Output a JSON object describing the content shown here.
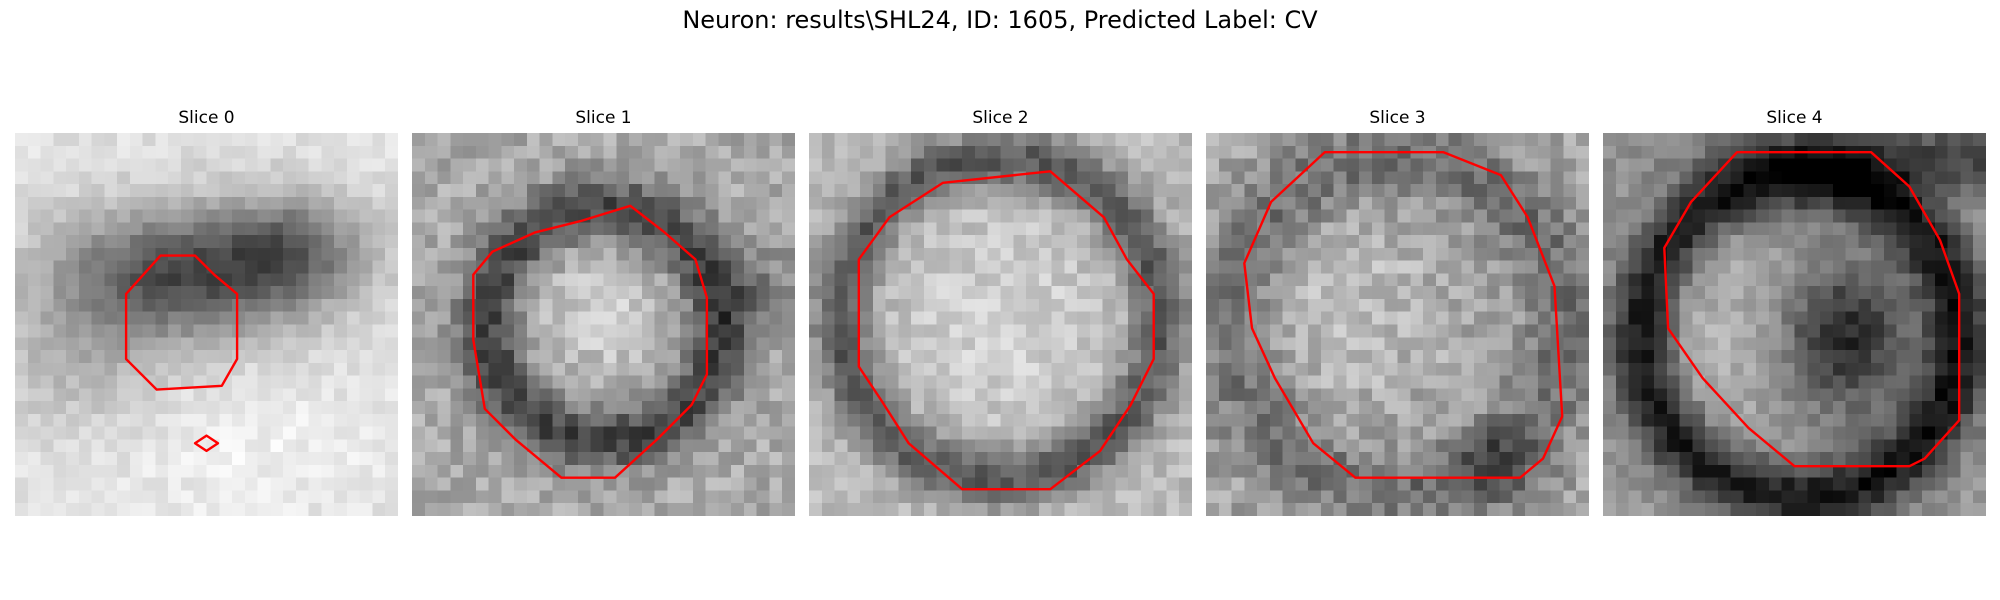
{
  "figure": {
    "title": "Neuron: results\\SHL24, ID: 1605, Predicted Label: CV"
  },
  "panels": [
    {
      "title": "Slice 0",
      "image": "grayscale-microscopy-slice",
      "contour_color": "#ff0000"
    },
    {
      "title": "Slice 1",
      "image": "grayscale-microscopy-slice",
      "contour_color": "#ff0000"
    },
    {
      "title": "Slice 2",
      "image": "grayscale-microscopy-slice",
      "contour_color": "#ff0000"
    },
    {
      "title": "Slice 3",
      "image": "grayscale-microscopy-slice",
      "contour_color": "#ff0000"
    },
    {
      "title": "Slice 4",
      "image": "grayscale-microscopy-slice",
      "contour_color": "#ff0000"
    }
  ]
}
